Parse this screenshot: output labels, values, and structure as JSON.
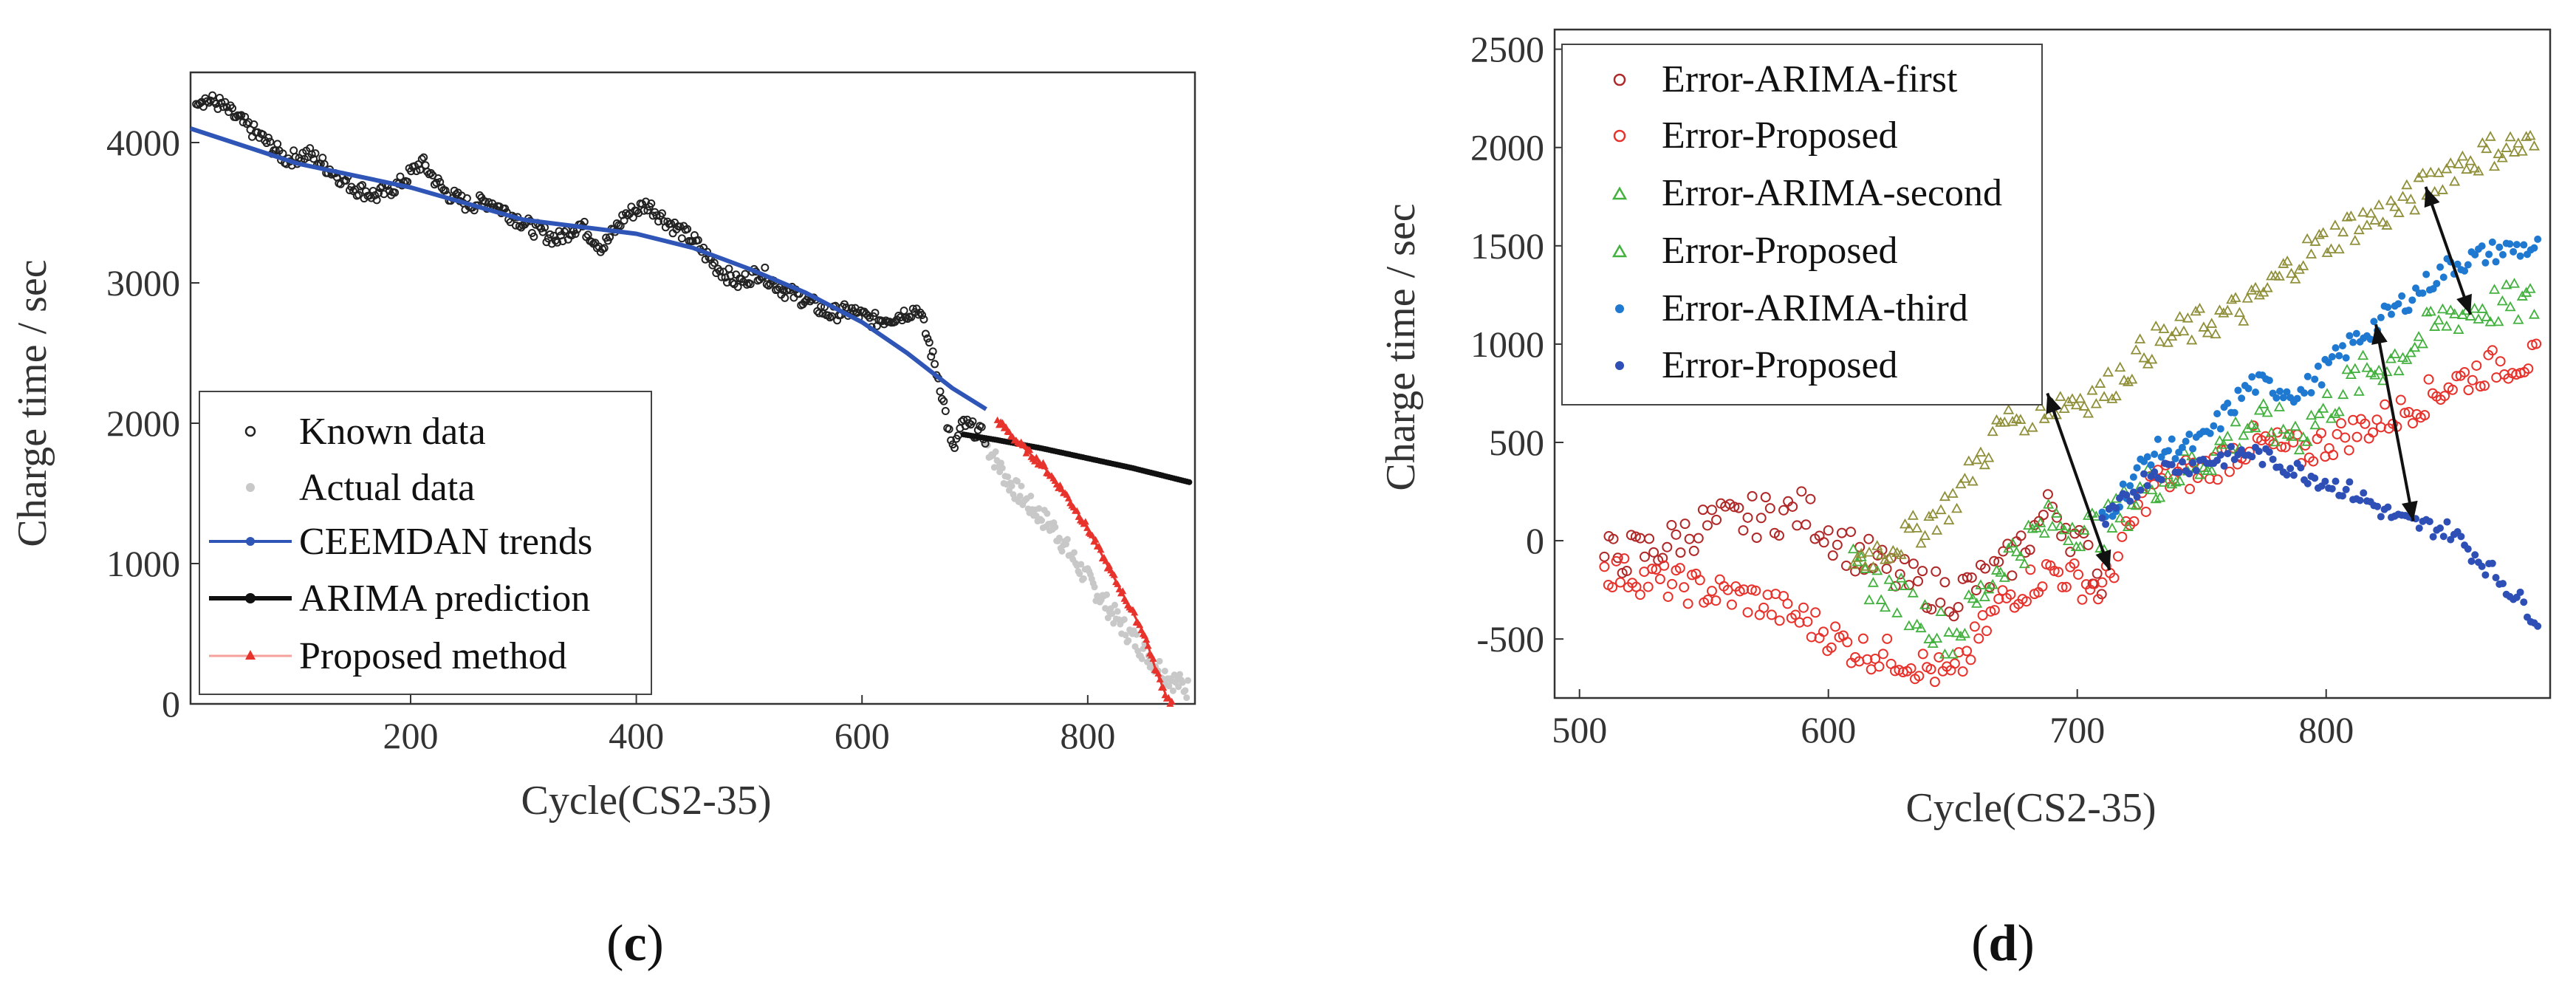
{
  "colors": {
    "known": "#222222",
    "actual": "#c8c8c8",
    "ceemdan": "#2f55b7",
    "arima": "#111111",
    "proposed": "#e8322c",
    "err_first": "#e8322c",
    "err_second": "#42b13e",
    "err_second_prop": "#8f8f3a",
    "err_third": "#1f79d1",
    "err_third_prop": "#2e4fb5",
    "err_first_dark": "#b02828"
  },
  "panels": [
    {
      "caption_open": "(",
      "caption_letter": "c",
      "caption_close": ")"
    },
    {
      "caption_open": "(",
      "caption_letter": "d",
      "caption_close": ")"
    }
  ],
  "chart_data": [
    {
      "type": "scatter",
      "title": "",
      "xlabel": "Cycle(CS2-35)",
      "ylabel": "Charge time / sec",
      "xlim": [
        5,
        895
      ],
      "ylim": [
        0,
        4500
      ],
      "xticks": [
        200,
        400,
        600,
        800
      ],
      "yticks": [
        0,
        1000,
        2000,
        3000,
        4000
      ],
      "legend_position": "bottom-left",
      "legend": [
        "Known data",
        "Actual data",
        "CEEMDAN trends",
        "ARIMA prediction",
        "Proposed method"
      ],
      "series": [
        {
          "name": "Known data",
          "marker": "open-circle",
          "x": [
            10,
            30,
            50,
            70,
            90,
            110,
            130,
            150,
            170,
            190,
            210,
            230,
            250,
            270,
            290,
            310,
            330,
            350,
            370,
            390,
            410,
            430,
            450,
            470,
            490,
            510,
            530,
            550,
            570,
            590,
            610,
            630,
            650,
            660,
            670,
            680,
            690,
            700,
            710
          ],
          "y": [
            4320,
            4280,
            4150,
            4020,
            3880,
            3920,
            3800,
            3680,
            3620,
            3700,
            3860,
            3650,
            3560,
            3580,
            3480,
            3380,
            3310,
            3420,
            3250,
            3480,
            3560,
            3420,
            3310,
            3120,
            3000,
            3080,
            2950,
            2880,
            2780,
            2800,
            2730,
            2760,
            2820,
            2550,
            2250,
            1800,
            2000,
            1950,
            1900
          ]
        },
        {
          "name": "Actual data",
          "marker": "filled-circle",
          "x": [
            710,
            730,
            750,
            770,
            790,
            810,
            830,
            850,
            870,
            890
          ],
          "y": [
            1850,
            1580,
            1400,
            1250,
            1000,
            780,
            560,
            380,
            200,
            100
          ]
        },
        {
          "name": "CEEMDAN trends",
          "marker": "line",
          "x": [
            5,
            100,
            200,
            300,
            400,
            450,
            500,
            550,
            600,
            640,
            680,
            710
          ],
          "y": [
            4100,
            3850,
            3680,
            3450,
            3350,
            3250,
            3100,
            2930,
            2720,
            2500,
            2250,
            2100
          ]
        },
        {
          "name": "ARIMA prediction",
          "marker": "line",
          "x": [
            690,
            720,
            760,
            800,
            840,
            880,
            890
          ],
          "y": [
            1920,
            1880,
            1820,
            1750,
            1680,
            1600,
            1580
          ]
        },
        {
          "name": "Proposed method",
          "marker": "triangle",
          "x": [
            720,
            740,
            760,
            780,
            800,
            820,
            840,
            850,
            860,
            870,
            875
          ],
          "y": [
            2020,
            1850,
            1700,
            1500,
            1250,
            950,
            650,
            500,
            250,
            50,
            0
          ]
        }
      ]
    },
    {
      "type": "scatter",
      "title": "",
      "xlabel": "Cycle(CS2-35)",
      "ylabel": "Charge time / sec",
      "xlim": [
        490,
        890
      ],
      "ylim": [
        -800,
        2600
      ],
      "xticks": [
        500,
        600,
        700,
        800
      ],
      "yticks": [
        -500,
        0,
        500,
        1000,
        1500,
        2000,
        2500
      ],
      "legend_position": "top-left",
      "legend": [
        "Error-ARIMA-first",
        "Error-Proposed",
        "Error-ARIMA-second",
        "Error-Proposed",
        "Error-ARIMA-third",
        "Error-Proposed"
      ],
      "series": [
        {
          "name": "Error-ARIMA-first",
          "marker": "open-circle",
          "x": [
            510,
            530,
            550,
            570,
            590,
            610,
            630,
            650,
            670,
            690,
            700,
            710
          ],
          "y": [
            -80,
            -50,
            80,
            120,
            150,
            -50,
            -200,
            -280,
            -150,
            180,
            0,
            -200
          ]
        },
        {
          "name": "Error-Proposed",
          "marker": "open-circle",
          "x": [
            510,
            530,
            550,
            570,
            590,
            610,
            630,
            650,
            670,
            690,
            710,
            730,
            750,
            770,
            790,
            810,
            830,
            850,
            870,
            885
          ],
          "y": [
            -150,
            -200,
            -250,
            -300,
            -400,
            -550,
            -600,
            -700,
            -300,
            -150,
            -250,
            300,
            350,
            500,
            450,
            550,
            650,
            800,
            900,
            920
          ]
        },
        {
          "name": "Error-ARIMA-second",
          "marker": "open-triangle",
          "x": [
            610,
            630,
            650,
            670,
            690,
            710,
            730,
            750,
            770,
            790,
            810,
            830,
            850,
            870,
            885
          ],
          "y": [
            -100,
            0,
            200,
            600,
            700,
            750,
            1000,
            1100,
            1200,
            1450,
            1600,
            1700,
            1900,
            2000,
            2010
          ]
        },
        {
          "name": "Error-Proposed",
          "marker": "open-triangle",
          "x": [
            610,
            630,
            650,
            670,
            690,
            710,
            730,
            750,
            770,
            790,
            810,
            830,
            850,
            870,
            885
          ],
          "y": [
            -150,
            -300,
            -500,
            -100,
            100,
            50,
            300,
            400,
            600,
            550,
            800,
            950,
            1150,
            1200,
            1200
          ]
        },
        {
          "name": "Error-ARIMA-third",
          "marker": "filled-circle",
          "x": [
            710,
            730,
            750,
            770,
            790,
            810,
            830,
            850,
            870,
            885
          ],
          "y": [
            100,
            450,
            500,
            800,
            750,
            1000,
            1200,
            1400,
            1480,
            1490
          ]
        },
        {
          "name": "Error-Proposed",
          "marker": "filled-circle",
          "x": [
            710,
            730,
            750,
            770,
            790,
            810,
            830,
            850,
            870,
            885
          ],
          "y": [
            80,
            350,
            400,
            450,
            350,
            250,
            100,
            50,
            -200,
            -400
          ]
        }
      ],
      "annotations": [
        {
          "type": "double-arrow",
          "from": [
            688,
            750
          ],
          "to": [
            713,
            -150
          ]
        },
        {
          "type": "double-arrow",
          "from": [
            840,
            1800
          ],
          "to": [
            858,
            1150
          ]
        },
        {
          "type": "double-arrow",
          "from": [
            820,
            1100
          ],
          "to": [
            835,
            100
          ]
        }
      ]
    }
  ]
}
